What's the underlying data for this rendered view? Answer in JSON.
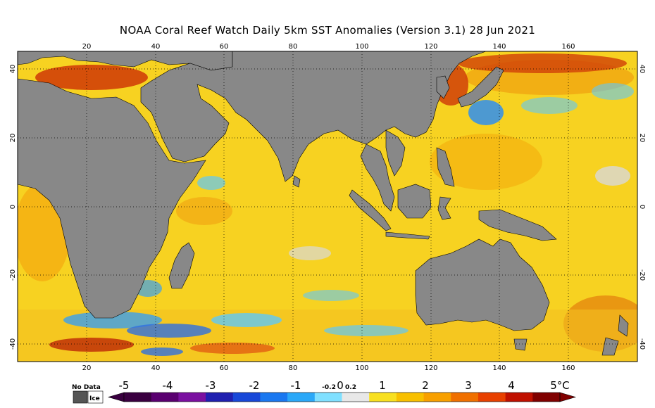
{
  "title": "NOAA Coral Reef Watch Daily 5km SST Anomalies (Version 3.1)  28 Jun 2021",
  "map": {
    "lon_range": [
      0,
      180
    ],
    "lat_range": [
      -45,
      45
    ],
    "lon_ticks": [
      "20",
      "40",
      "60",
      "80",
      "100",
      "120",
      "140",
      "160"
    ],
    "lat_ticks_left": [
      "40",
      "20",
      "0",
      "-20",
      "-40"
    ],
    "lat_ticks_right": [
      "40",
      "20",
      "0",
      "-20",
      "-40"
    ],
    "land_color": "#888888",
    "ocean_base_color": "#f7d31a",
    "gridlines": "dotted"
  },
  "colorbar": {
    "unit": "°C",
    "labels": [
      "-5",
      "-4",
      "-3",
      "-2",
      "-1",
      "-0.2",
      "0",
      "0.2",
      "1",
      "2",
      "3",
      "4",
      "5°C"
    ],
    "colors": [
      "#3a0040",
      "#5a0070",
      "#7a10a0",
      "#2020b0",
      "#1848d8",
      "#1a78f0",
      "#2aa8f8",
      "#80e0ff",
      "#e8e8e8",
      "#f8e020",
      "#f8c000",
      "#f8a000",
      "#f07000",
      "#e84000",
      "#c01000",
      "#800000"
    ]
  },
  "legend": {
    "no_data_label": "No Data",
    "ice_label": "Ice",
    "no_data_color": "#555555",
    "ice_color": "#ffffff"
  }
}
